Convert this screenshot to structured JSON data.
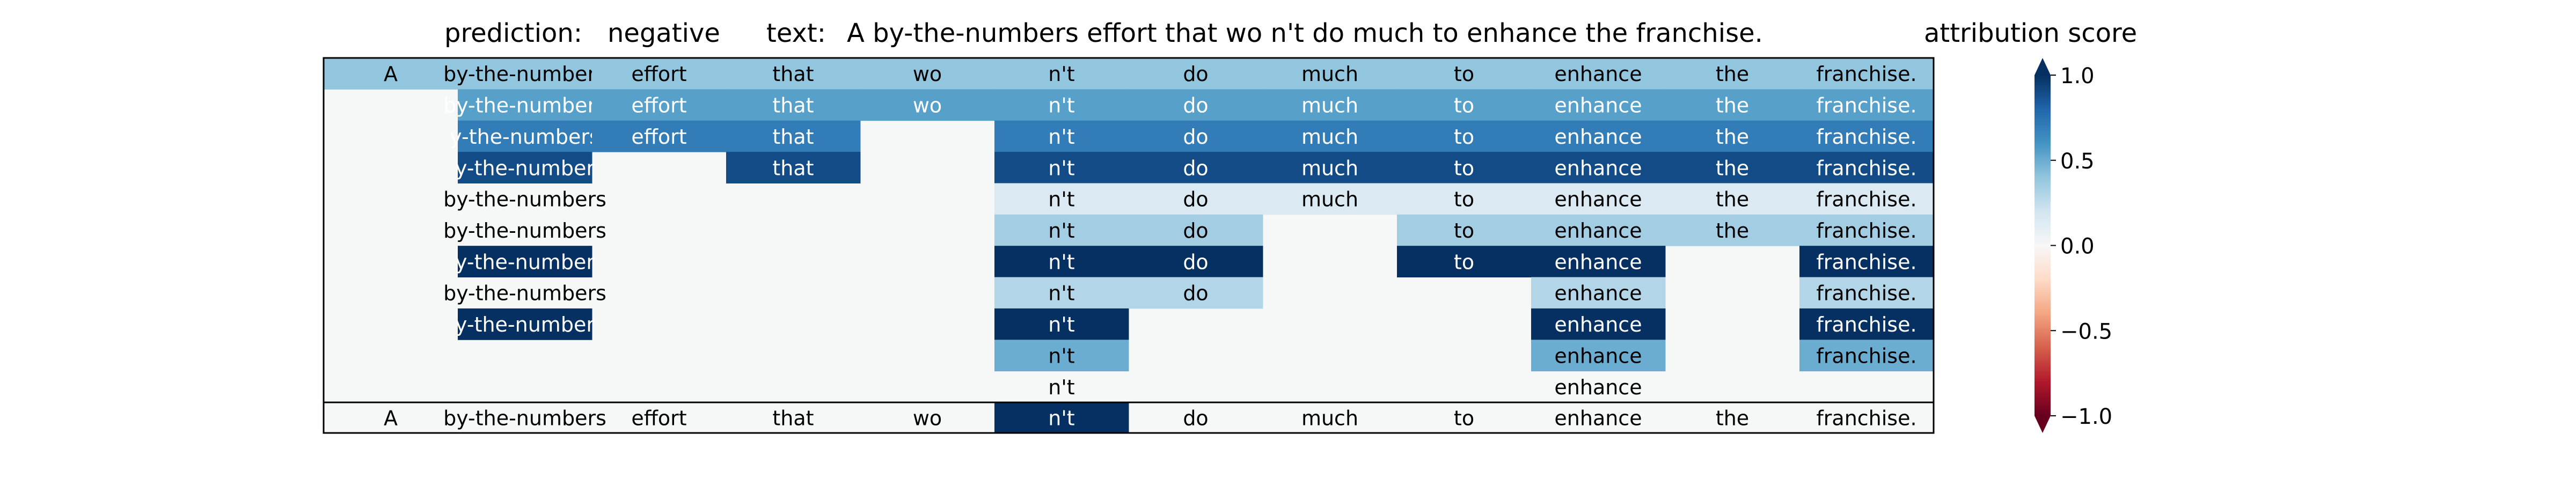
{
  "chart_data": {
    "type": "heatmap",
    "prediction_label": "prediction:",
    "prediction_value": "negative",
    "text_label": "text:",
    "text_value": "A by-the-numbers effort that wo n't do much to enhance the franchise.",
    "tokens": [
      "A",
      "by-the-numbers",
      "effort",
      "that",
      "wo",
      "n't",
      "do",
      "much",
      "to",
      "enhance",
      "the",
      "franchise."
    ],
    "row_labels": [
      [
        "A",
        "by-the-numbers",
        "effort",
        "that",
        "wo",
        "n't",
        "do",
        "much",
        "to",
        "enhance",
        "the",
        "franchise."
      ],
      [
        "",
        "by-the-numbers",
        "effort",
        "that",
        "wo",
        "n't",
        "do",
        "much",
        "to",
        "enhance",
        "the",
        "franchise."
      ],
      [
        "",
        "y-the-numbers",
        "effort",
        "that",
        "",
        "n't",
        "do",
        "much",
        "to",
        "enhance",
        "the",
        "franchise."
      ],
      [
        "",
        "y-the-number",
        "",
        "that",
        "",
        "n't",
        "do",
        "much",
        "to",
        "enhance",
        "the",
        "franchise."
      ],
      [
        "",
        "by-the-numbers",
        "",
        "",
        "",
        "n't",
        "do",
        "much",
        "to",
        "enhance",
        "the",
        "franchise."
      ],
      [
        "",
        "by-the-numbers",
        "",
        "",
        "",
        "n't",
        "do",
        "",
        "to",
        "enhance",
        "the",
        "franchise."
      ],
      [
        "",
        "y-the-number",
        "",
        "",
        "",
        "n't",
        "do",
        "",
        "to",
        "enhance",
        "",
        "franchise."
      ],
      [
        "",
        "by-the-numbers",
        "",
        "",
        "",
        "n't",
        "do",
        "",
        "",
        "enhance",
        "",
        "franchise."
      ],
      [
        "",
        "y-the-number",
        "",
        "",
        "",
        "n't",
        "",
        "",
        "",
        "enhance",
        "",
        "franchise."
      ],
      [
        "",
        "",
        "",
        "",
        "",
        "n't",
        "",
        "",
        "",
        "enhance",
        "",
        "franchise."
      ],
      [
        "",
        "",
        "",
        "",
        "",
        "n't",
        "",
        "",
        "",
        "enhance",
        "",
        ""
      ]
    ],
    "values": [
      [
        0.4,
        0.4,
        0.4,
        0.4,
        0.4,
        0.4,
        0.4,
        0.4,
        0.4,
        0.4,
        0.4,
        0.4
      ],
      [
        0,
        0.55,
        0.55,
        0.55,
        0.55,
        0.55,
        0.55,
        0.55,
        0.55,
        0.55,
        0.55,
        0.55
      ],
      [
        0,
        0.7,
        0.7,
        0.7,
        0,
        0.7,
        0.7,
        0.7,
        0.7,
        0.7,
        0.7,
        0.7
      ],
      [
        0,
        0.9,
        0,
        0.9,
        0,
        0.9,
        0.9,
        0.9,
        0.9,
        0.9,
        0.9,
        0.9
      ],
      [
        0,
        0,
        0,
        0,
        0,
        0.15,
        0.15,
        0.15,
        0.15,
        0.15,
        0.15,
        0.15
      ],
      [
        0,
        0,
        0,
        0,
        0,
        0.35,
        0.35,
        0,
        0.35,
        0.35,
        0.35,
        0.35
      ],
      [
        0,
        1.0,
        0,
        0,
        0,
        1.0,
        1.0,
        0,
        1.0,
        1.0,
        0,
        1.0
      ],
      [
        0,
        0,
        0,
        0,
        0,
        0.3,
        0.3,
        0,
        0,
        0.3,
        0,
        0.3
      ],
      [
        0,
        1.0,
        0,
        0,
        0,
        1.0,
        0,
        0,
        0,
        1.0,
        0,
        1.0
      ],
      [
        0,
        0,
        0,
        0,
        0,
        0.5,
        0,
        0,
        0,
        0.5,
        0,
        0.5
      ],
      [
        0,
        0,
        0,
        0,
        0,
        0,
        0,
        0,
        0,
        0,
        0,
        0
      ]
    ],
    "final_row": {
      "labels": [
        "A",
        "by-the-numbers",
        "effort",
        "that",
        "wo",
        "n't",
        "do",
        "much",
        "to",
        "enhance",
        "the",
        "franchise."
      ],
      "values": [
        0,
        0,
        0,
        0,
        0,
        1.0,
        0,
        0,
        0,
        0,
        0,
        0
      ]
    },
    "colorbar": {
      "title": "attribution score",
      "ticks": [
        "1.0",
        "0.5",
        "0.0",
        "−0.5",
        "−1.0"
      ],
      "range": [
        -1,
        1
      ]
    },
    "colormap": "RdBu",
    "grid": false
  }
}
